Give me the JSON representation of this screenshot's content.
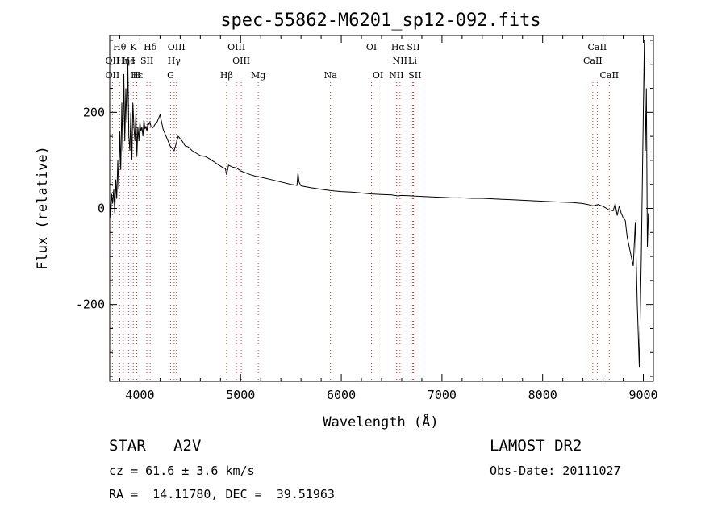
{
  "chart_data": {
    "type": "line",
    "title": "spec-55862-M6201_sp12-092.fits",
    "xlabel": "Wavelength (Å)",
    "ylabel": "Flux (relative)",
    "xlim": [
      3700,
      9100
    ],
    "ylim": [
      -360,
      360
    ],
    "xticks": [
      4000,
      5000,
      6000,
      7000,
      8000,
      9000
    ],
    "yticks": [
      -200,
      0,
      200
    ],
    "grid": false,
    "series": [
      {
        "x": [
          3700,
          3710,
          3720,
          3730,
          3740,
          3750,
          3760,
          3770,
          3780,
          3790,
          3800,
          3810,
          3820,
          3830,
          3840,
          3850,
          3860,
          3870,
          3880,
          3890,
          3900,
          3910,
          3920,
          3930,
          3940,
          3950,
          3960,
          3970,
          3980,
          3990,
          4000,
          4010,
          4020,
          4030,
          4040,
          4050,
          4060,
          4070,
          4080,
          4090,
          4100,
          4110,
          4130,
          4150,
          4170,
          4200,
          4230,
          4260,
          4300,
          4340,
          4380,
          4420,
          4450,
          4480,
          4520,
          4560,
          4600,
          4650,
          4700,
          4750,
          4800,
          4850,
          4861,
          4880,
          4920,
          4960,
          5000,
          5050,
          5100,
          5150,
          5200,
          5300,
          5400,
          5500,
          5560,
          5570,
          5580,
          5600,
          5700,
          5800,
          5900,
          6000,
          6100,
          6200,
          6300,
          6400,
          6500,
          6563,
          6600,
          6700,
          6800,
          6900,
          7000,
          7100,
          7200,
          7300,
          7400,
          7500,
          7600,
          7700,
          7800,
          7900,
          8000,
          8100,
          8200,
          8300,
          8400,
          8450,
          8500,
          8550,
          8600,
          8650,
          8700,
          8720,
          8740,
          8760,
          8780,
          8800,
          8820,
          8840,
          8860,
          8880,
          8900,
          8920,
          8940,
          8960,
          8980,
          9000,
          9010,
          9020,
          9030,
          9040,
          9050
        ],
        "y": [
          20,
          -20,
          30,
          10,
          40,
          -10,
          60,
          20,
          100,
          40,
          160,
          80,
          220,
          120,
          280,
          140,
          250,
          180,
          300,
          150,
          120,
          200,
          100,
          220,
          170,
          140,
          200,
          110,
          170,
          140,
          180,
          160,
          170,
          150,
          185,
          165,
          170,
          160,
          180,
          175,
          180,
          170,
          168,
          175,
          180,
          195,
          165,
          150,
          130,
          120,
          150,
          140,
          130,
          128,
          120,
          115,
          110,
          108,
          102,
          95,
          88,
          82,
          70,
          90,
          86,
          84,
          78,
          74,
          70,
          67,
          65,
          60,
          55,
          50,
          48,
          75,
          55,
          47,
          43,
          40,
          37,
          35,
          34,
          32,
          30,
          29,
          28,
          26,
          27,
          26,
          25,
          24,
          23,
          22,
          22,
          21,
          21,
          20,
          19,
          18,
          17,
          16,
          15,
          14,
          13,
          12,
          10,
          8,
          5,
          8,
          4,
          -2,
          -5,
          10,
          -15,
          5,
          -10,
          -20,
          -25,
          -60,
          -80,
          -100,
          -120,
          -30,
          -200,
          -330,
          -100,
          200,
          350,
          120,
          250,
          -80,
          -10
        ]
      }
    ]
  },
  "lines": {
    "row1": [
      {
        "label": "Hθ",
        "x": 3798
      },
      {
        "label": "K",
        "x": 3934
      },
      {
        "label": "Hδ",
        "x": 4102
      },
      {
        "label": "OIII",
        "x": 4363
      },
      {
        "label": "OIII",
        "x": 4959
      },
      {
        "label": "OI",
        "x": 6300
      },
      {
        "label": "Hα",
        "x": 6563
      },
      {
        "label": "SII",
        "x": 6716
      },
      {
        "label": "CaII",
        "x": 8542
      }
    ],
    "row2": [
      {
        "label": "OII",
        "x": 3727
      },
      {
        "label": "Hη",
        "x": 3835
      },
      {
        "label": "He",
        "x": 3889
      },
      {
        "label": "I",
        "x": 3934
      },
      {
        "label": "SII",
        "x": 4069
      },
      {
        "label": "Hγ",
        "x": 4340
      },
      {
        "label": "OIII",
        "x": 5007
      },
      {
        "label": "NII",
        "x": 6583
      },
      {
        "label": "Li",
        "x": 6708
      },
      {
        "label": "CaII",
        "x": 8498
      }
    ],
    "row3": [
      {
        "label": "OII",
        "x": 3727
      },
      {
        "label": "Hε",
        "x": 3970
      },
      {
        "label": "H",
        "x": 3968
      },
      {
        "label": "G",
        "x": 4305
      },
      {
        "label": "Hβ",
        "x": 4861
      },
      {
        "label": "Mg",
        "x": 5175
      },
      {
        "label": "Na",
        "x": 5893
      },
      {
        "label": "OI",
        "x": 6364
      },
      {
        "label": "NII",
        "x": 6548
      },
      {
        "label": "SII",
        "x": 6731
      },
      {
        "label": "CaII",
        "x": 8662
      }
    ]
  },
  "info": {
    "class": "STAR",
    "subclass": "A2V",
    "cz": "cz = 61.6 ± 3.6 km/s",
    "radec": "RA =  14.11780, DEC =  39.51963",
    "survey": "LAMOST DR2",
    "obsdate": "Obs-Date: 20111027"
  }
}
